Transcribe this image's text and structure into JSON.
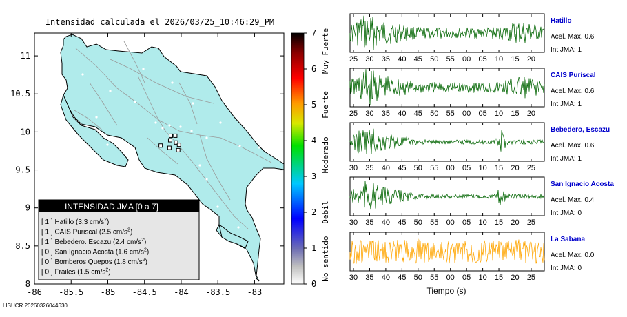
{
  "title": "Intensidad calculada el 2026/03/25_10:46:29_PM",
  "footer_id": "LISUCR 20260326044630",
  "chart_data": [
    {
      "type": "scatter",
      "title": "Intensidad calculada el 2026/03/25_10:46:29_PM",
      "x_ticks": [
        "-86",
        "-85.5",
        "-85",
        "-84.5",
        "-84",
        "-83.5",
        "-83"
      ],
      "y_ticks": [
        "8",
        "8.5",
        "9",
        "9.5",
        "10",
        "10.5",
        "11"
      ],
      "xlim": [
        -86,
        -82.6
      ],
      "ylim": [
        8,
        11.3
      ],
      "stations": [
        {
          "lon": -84.14,
          "lat": 9.95
        },
        {
          "lon": -84.08,
          "lat": 9.95
        },
        {
          "lon": -84.15,
          "lat": 9.89
        },
        {
          "lon": -84.28,
          "lat": 9.82
        },
        {
          "lon": -84.07,
          "lat": 9.86
        },
        {
          "lon": -84.16,
          "lat": 9.79
        },
        {
          "lon": -84.03,
          "lat": 9.83
        },
        {
          "lon": -84.04,
          "lat": 9.76
        }
      ],
      "legend": {
        "title": "INTENSIDAD JMA [0 a 7]",
        "items": [
          {
            "bracket": "[ 1 ]",
            "name": "Hatillo",
            "val": "(3.3 cm/s",
            "exp": "2",
            "close": ")"
          },
          {
            "bracket": "[ 1 ]",
            "name": "CAIS Puriscal",
            "val": "(2.5 cm/s",
            "exp": "2",
            "close": ")"
          },
          {
            "bracket": "[ 1 ]",
            "name": "Bebedero. Escazu",
            "val": "(2.4 cm/s",
            "exp": "2",
            "close": ")"
          },
          {
            "bracket": "[ 0 ]",
            "name": "San Ignacio Acosta",
            "val": "(1.6 cm/s",
            "exp": "2",
            "close": ")"
          },
          {
            "bracket": "[ 0 ]",
            "name": "Bomberos Quepos",
            "val": "(1.8 cm/s",
            "exp": "2",
            "close": ")"
          },
          {
            "bracket": "[ 0 ]",
            "name": "Frailes",
            "val": "(1.5 cm/s",
            "exp": "2",
            "close": ")"
          }
        ]
      }
    },
    {
      "type": "heatmap",
      "colorbar_ticks": [
        "0",
        "1",
        "2",
        "3",
        "4",
        "5",
        "6",
        "7"
      ],
      "colorbar_range": [
        0,
        7
      ],
      "category_labels": [
        "No sentido",
        "Debil",
        "Moderado",
        "Fuerte",
        "Muy Fuerte"
      ]
    },
    {
      "type": "line",
      "xlabel": "Tiempo (s)",
      "series": [
        {
          "name": "Hatillo",
          "accel": "Acel. Max. 0.6",
          "jma": "Int JMA: 1",
          "color": "#006400",
          "ticks": [
            "25",
            "30",
            "35",
            "40",
            "45",
            "50",
            "55",
            "00",
            "05",
            "10",
            "15",
            "20"
          ],
          "first_tick": 25
        },
        {
          "name": "CAIS Puriscal",
          "accel": "Acel. Max. 0.6",
          "jma": "Int JMA: 1",
          "color": "#006400",
          "ticks": [
            "25",
            "30",
            "35",
            "40",
            "45",
            "50",
            "55",
            "00",
            "05",
            "10",
            "15",
            "20"
          ],
          "first_tick": 25
        },
        {
          "name": "Bebedero, Escazu",
          "accel": "Acel. Max. 0.6",
          "jma": "Int JMA: 1",
          "color": "#006400",
          "ticks": [
            "30",
            "35",
            "40",
            "45",
            "50",
            "55",
            "00",
            "05",
            "10",
            "15",
            "20",
            "25"
          ],
          "first_tick": 30
        },
        {
          "name": "San Ignacio Acosta",
          "accel": "Acel. Max. 0.4",
          "jma": "Int JMA: 0",
          "color": "#006400",
          "ticks": [
            "30",
            "35",
            "40",
            "45",
            "50",
            "55",
            "00",
            "05",
            "10",
            "15",
            "20",
            "25"
          ],
          "first_tick": 30
        },
        {
          "name": "La Sabana",
          "accel": "Acel. Max. 0.0",
          "jma": "Int JMA: 0",
          "color": "#FFA500",
          "ticks": [
            "30",
            "35",
            "40",
            "45",
            "50",
            "55",
            "00",
            "05",
            "10",
            "15",
            "20",
            "25"
          ],
          "first_tick": 30
        }
      ]
    }
  ]
}
